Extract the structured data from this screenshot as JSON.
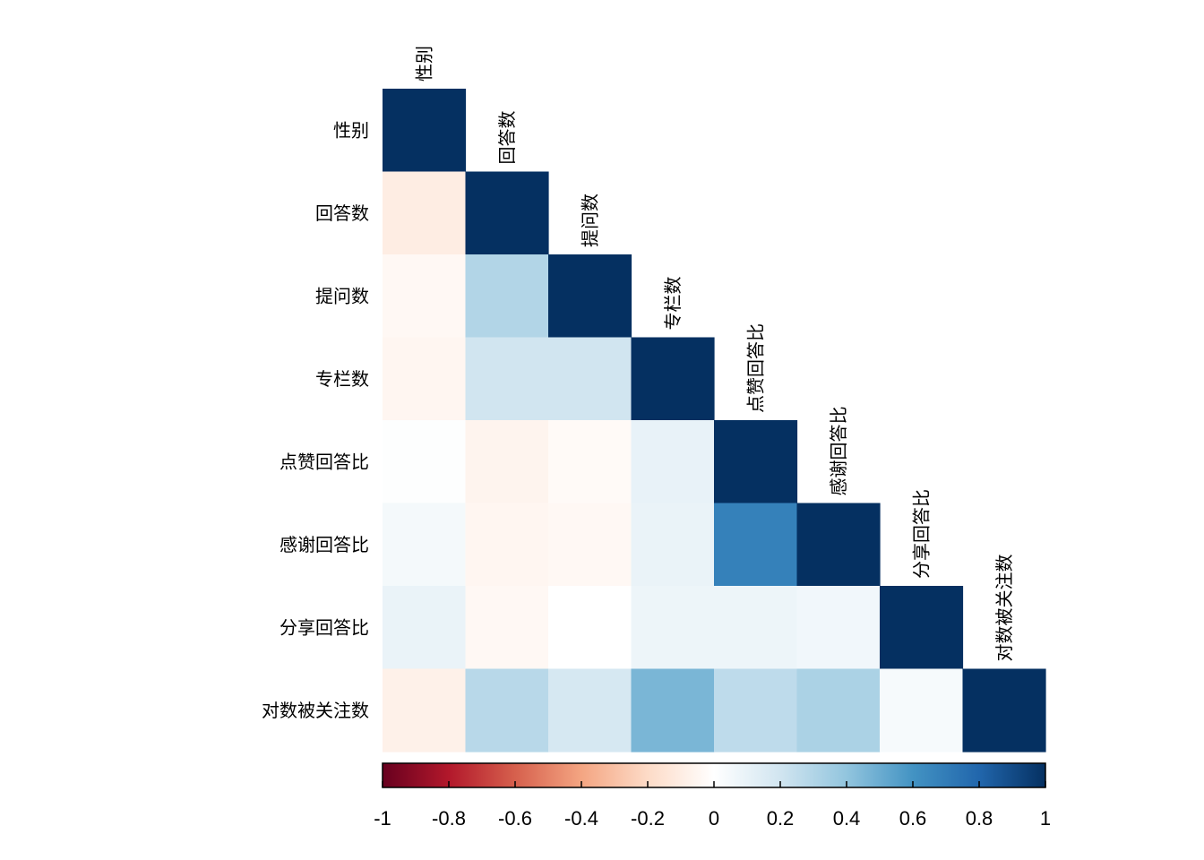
{
  "chart_data": {
    "type": "heatmap",
    "subtype": "correlation-lower-triangle",
    "variables": [
      "性别",
      "回答数",
      "提问数",
      "专栏数",
      "点赞回答比",
      "感谢回答比",
      "分享回答比",
      "对数被关注数"
    ],
    "matrix": [
      [
        1.0
      ],
      [
        -0.1,
        1.0
      ],
      [
        -0.04,
        0.3,
        1.0
      ],
      [
        -0.05,
        0.2,
        0.2,
        1.0
      ],
      [
        0.01,
        -0.06,
        -0.03,
        0.1,
        1.0
      ],
      [
        0.05,
        -0.05,
        -0.04,
        0.09,
        0.68,
        1.0
      ],
      [
        0.09,
        -0.04,
        0.0,
        0.08,
        0.08,
        0.06,
        1.0
      ],
      [
        -0.08,
        0.28,
        0.18,
        0.46,
        0.26,
        0.32,
        0.04,
        1.0
      ]
    ],
    "colorbar": {
      "range": [
        -1,
        1
      ],
      "ticks": [
        "-1",
        "-0.8",
        "-0.6",
        "-0.4",
        "-0.2",
        "0",
        "0.2",
        "0.4",
        "0.6",
        "0.8",
        "1"
      ],
      "placement": "bottom"
    },
    "colors": {
      "negative_end": "#67001f",
      "neutral": "#ffffff",
      "positive_end": "#053061"
    },
    "grid": false,
    "legend": "colorbar-bottom"
  }
}
